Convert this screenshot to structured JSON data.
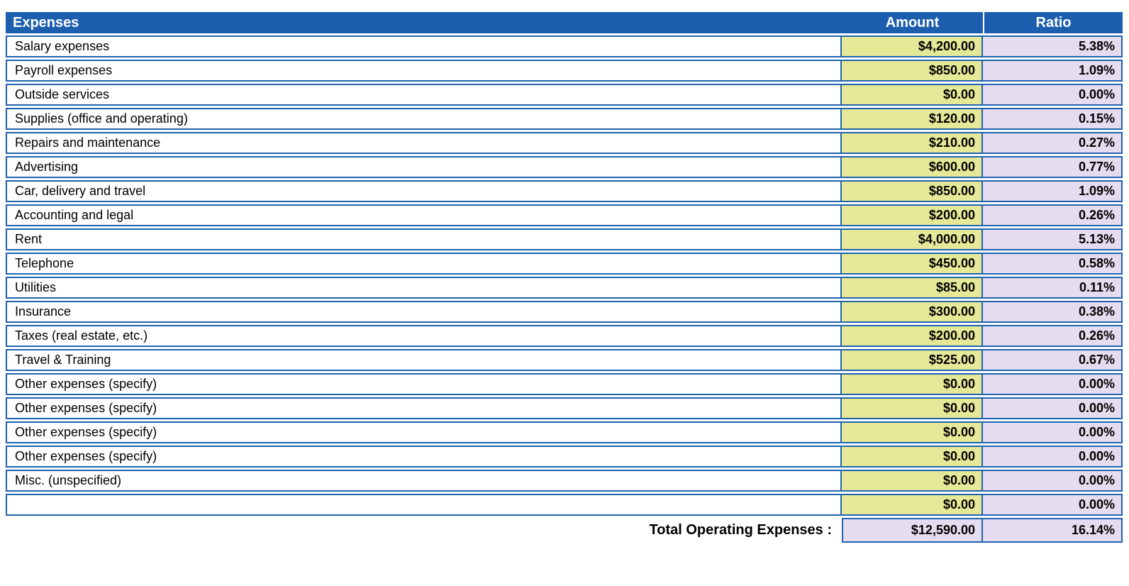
{
  "table": {
    "header": {
      "expenses": "Expenses",
      "amount": "Amount",
      "ratio": "Ratio"
    },
    "rows": [
      {
        "label": "Salary expenses",
        "amount": "$4,200.00",
        "ratio": "5.38%"
      },
      {
        "label": "Payroll expenses",
        "amount": "$850.00",
        "ratio": "1.09%"
      },
      {
        "label": "Outside services",
        "amount": "$0.00",
        "ratio": "0.00%"
      },
      {
        "label": "Supplies (office and operating)",
        "amount": "$120.00",
        "ratio": "0.15%"
      },
      {
        "label": "Repairs and maintenance",
        "amount": "$210.00",
        "ratio": "0.27%"
      },
      {
        "label": "Advertising",
        "amount": "$600.00",
        "ratio": "0.77%"
      },
      {
        "label": "Car, delivery and travel",
        "amount": "$850.00",
        "ratio": "1.09%"
      },
      {
        "label": "Accounting and legal",
        "amount": "$200.00",
        "ratio": "0.26%"
      },
      {
        "label": "Rent",
        "amount": "$4,000.00",
        "ratio": "5.13%"
      },
      {
        "label": "Telephone",
        "amount": "$450.00",
        "ratio": "0.58%"
      },
      {
        "label": "Utilities",
        "amount": "$85.00",
        "ratio": "0.11%"
      },
      {
        "label": "Insurance",
        "amount": "$300.00",
        "ratio": "0.38%"
      },
      {
        "label": "Taxes (real estate, etc.)",
        "amount": "$200.00",
        "ratio": "0.26%"
      },
      {
        "label": "Travel & Training",
        "amount": "$525.00",
        "ratio": "0.67%"
      },
      {
        "label": "Other expenses (specify)",
        "amount": "$0.00",
        "ratio": "0.00%"
      },
      {
        "label": "Other expenses (specify)",
        "amount": "$0.00",
        "ratio": "0.00%"
      },
      {
        "label": "Other expenses (specify)",
        "amount": "$0.00",
        "ratio": "0.00%"
      },
      {
        "label": "Other expenses (specify)",
        "amount": "$0.00",
        "ratio": "0.00%"
      },
      {
        "label": "Misc. (unspecified)",
        "amount": "$0.00",
        "ratio": "0.00%"
      },
      {
        "label": "",
        "amount": "$0.00",
        "ratio": "0.00%"
      }
    ],
    "total": {
      "label": "Total Operating Expenses :",
      "amount": "$12,590.00",
      "ratio": "16.14%"
    }
  },
  "colors": {
    "header_blue": "#1d5fae",
    "border_blue": "#2063b0",
    "amount_fill": "#e4e897",
    "ratio_fill": "#e4dcef",
    "header_text": "#ffffff",
    "body_text": "#000000"
  }
}
